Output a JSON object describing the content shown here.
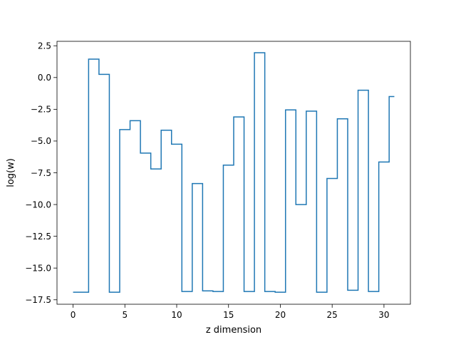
{
  "chart_data": {
    "type": "line",
    "drawstyle": "steps-mid",
    "xlabel": "z dimension",
    "ylabel": "log(w)",
    "xlim": [
      -1.55,
      32.55
    ],
    "ylim": [
      -17.85,
      2.85
    ],
    "x_ticks": [
      0,
      5,
      10,
      15,
      20,
      25,
      30
    ],
    "y_ticks": [
      2.5,
      0.0,
      -2.5,
      -5.0,
      -7.5,
      -10.0,
      -12.5,
      -15.0,
      -17.5
    ],
    "x_tick_labels": [
      "0",
      "5",
      "10",
      "15",
      "20",
      "25",
      "30"
    ],
    "y_tick_labels": [
      "2.5",
      "0.0",
      "−2.5",
      "−5.0",
      "−7.5",
      "−10.0",
      "−12.5",
      "−15.0",
      "−17.5"
    ],
    "grid": false,
    "color": "#1f77b4",
    "series": [
      {
        "x": [
          0,
          1,
          2,
          3,
          4,
          5,
          6,
          7,
          8,
          9,
          10,
          11,
          12,
          13,
          14,
          15,
          16,
          17,
          18,
          19,
          20,
          21,
          22,
          23,
          24,
          25,
          26,
          27,
          28,
          29,
          30,
          31
        ],
        "values": [
          -16.9,
          -16.9,
          1.45,
          0.25,
          -16.9,
          -4.1,
          -3.4,
          -5.95,
          -7.2,
          -4.15,
          -5.25,
          -16.85,
          -8.35,
          -16.8,
          -16.85,
          -6.9,
          -3.1,
          -16.85,
          1.95,
          -16.85,
          -16.9,
          -2.55,
          -10.0,
          -2.65,
          -16.9,
          -7.95,
          -3.25,
          -16.75,
          -1.0,
          -16.85,
          -6.65,
          -1.5
        ]
      }
    ]
  }
}
